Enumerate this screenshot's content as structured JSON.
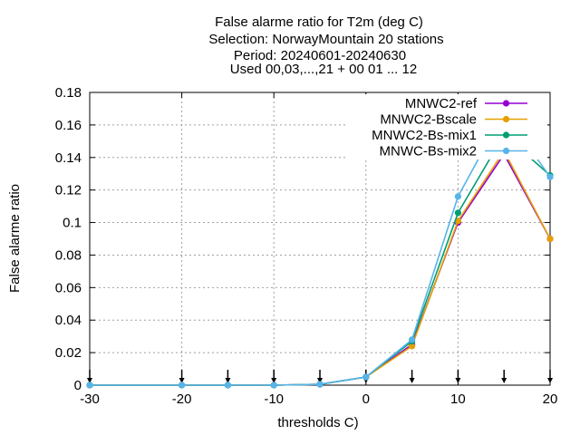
{
  "chart_data": {
    "type": "line",
    "title_lines": [
      "False alarme ratio  for T2m (deg C)",
      "Selection: NorwayMountain     20 stations",
      "Period: 20240601-20240630",
      "Used 00,03,...,21 + 00 01 ... 12"
    ],
    "xlabel": "thresholds C)",
    "ylabel": "False alarme ratio",
    "xlim": [
      -30,
      20
    ],
    "ylim": [
      0,
      0.18
    ],
    "xticks": [
      -30,
      -20,
      -10,
      0,
      10,
      20
    ],
    "xtick_labels": [
      "-30",
      "-20",
      "-10",
      "0",
      "10",
      "20"
    ],
    "yticks": [
      0,
      0.02,
      0.04,
      0.06,
      0.08,
      0.1,
      0.12,
      0.14,
      0.16,
      0.18
    ],
    "ytick_labels": [
      "0",
      "0.02",
      "0.04",
      "0.06",
      "0.08",
      "0.1",
      "0.12",
      "0.14",
      "0.16",
      "0.18"
    ],
    "grid": true,
    "legend_position": "top-right",
    "threshold_markers": [
      -30,
      -20,
      -15,
      -10,
      -5,
      0,
      5,
      10,
      15,
      20
    ],
    "series": [
      {
        "name": "MNWC2-ref",
        "color": "#9400d3",
        "x": [
          -30,
          -20,
          -15,
          -10,
          -5,
          0,
          5,
          10,
          15,
          20
        ],
        "y": [
          0,
          0,
          0,
          0,
          0.0005,
          0.005,
          0.025,
          0.1,
          0.142,
          0.09
        ]
      },
      {
        "name": "MNWC2-Bscale",
        "color": "#e69f00",
        "x": [
          -30,
          -20,
          -15,
          -10,
          -5,
          0,
          5,
          10,
          15,
          20
        ],
        "y": [
          0,
          0,
          0,
          0,
          0.0005,
          0.005,
          0.024,
          0.101,
          0.144,
          0.09
        ]
      },
      {
        "name": "MNWC2-Bs-mix1",
        "color": "#009e73",
        "x": [
          -30,
          -20,
          -15,
          -10,
          -5,
          0,
          5,
          10,
          15,
          20
        ],
        "y": [
          0,
          0,
          0,
          0,
          0.0005,
          0.005,
          0.027,
          0.106,
          0.154,
          0.129
        ]
      },
      {
        "name": "MNWC-Bs-mix2",
        "color": "#56b4e9",
        "x": [
          -30,
          -20,
          -15,
          -10,
          -5,
          0,
          5,
          10,
          15,
          20
        ],
        "y": [
          0,
          0,
          0,
          0,
          0.0005,
          0.005,
          0.028,
          0.116,
          0.168,
          0.128
        ]
      }
    ]
  }
}
